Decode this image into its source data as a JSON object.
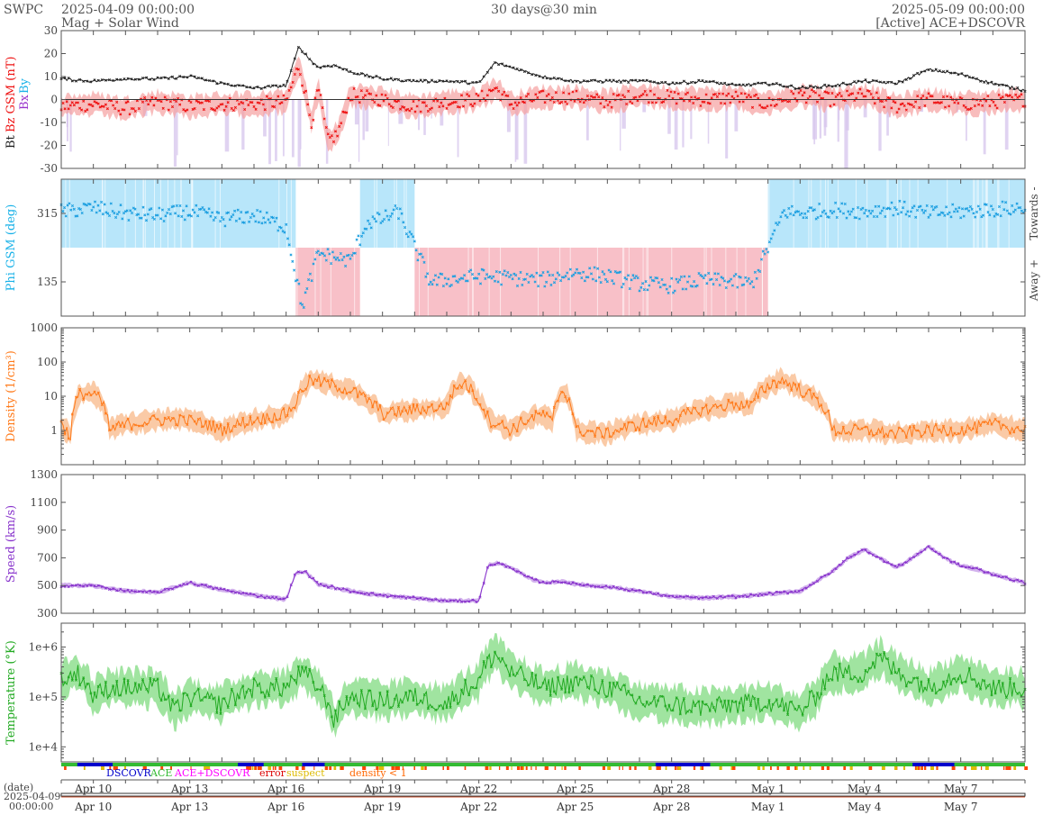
{
  "header": {
    "org": "SWPC",
    "start_time": "2025-04-09 00:00:00",
    "product": "Mag + Solar Wind",
    "resolution": "30 days@30 min",
    "end_time": "2025-05-09 00:00:00",
    "source": "[Active] ACE+DSCOVR"
  },
  "date_axis": {
    "label": "(date)",
    "start_date": "2025-04-09",
    "start_clock": "00:00:00",
    "ticks": [
      "Apr 10",
      "Apr 13",
      "Apr 16",
      "Apr 19",
      "Apr 22",
      "Apr 25",
      "Apr 28",
      "May 1",
      "May 4",
      "May 7"
    ]
  },
  "legend": {
    "items": [
      {
        "label": "DSCOVR",
        "color": "#0000cc"
      },
      {
        "label": "ACE",
        "color": "#33bb33"
      },
      {
        "label": "ACE+DSCOVR",
        "color": "#ff00ff"
      },
      {
        "label": "error",
        "color": "#dd0000"
      },
      {
        "label": "suspect",
        "color": "#ddbb00"
      },
      {
        "label": "density < 1",
        "color": "#ff6600"
      }
    ]
  },
  "colors": {
    "bt": "#222222",
    "bz": "#ee1111",
    "bz_fill": "#f5a0a0",
    "bx": "#9933cc",
    "by": "#1ab2e8",
    "phi_towards": "#b8e6fa",
    "phi_away": "#f8c0c8",
    "phi_points": "#1a9ee0",
    "density": "#ff7a1a",
    "density_fill": "#f8b888",
    "speed": "#8833cc",
    "speed_fill": "#c8a0e8",
    "temperature": "#22aa22",
    "temperature_fill": "#88dd88",
    "axis": "#555555"
  },
  "chart_data": [
    {
      "panel": "magnetic-field",
      "type": "line",
      "ylabel_parts": [
        "Bt",
        "Bz GSM (nT)",
        "Bx",
        "By"
      ],
      "ylim": [
        -30,
        30
      ],
      "yticks": [
        -30,
        -20,
        -10,
        0,
        10,
        20,
        30
      ],
      "x_unit": "days since 2025-04-09 00:00",
      "series": [
        {
          "name": "Bt",
          "x": [
            0,
            1,
            2,
            3,
            4,
            5,
            6,
            7,
            7.4,
            7.7,
            8,
            8.5,
            9,
            10,
            11,
            12,
            13,
            13.5,
            14,
            15,
            16,
            17,
            18,
            19,
            20,
            21,
            22,
            23,
            24,
            25,
            26,
            27,
            28,
            29,
            30
          ],
          "values": [
            9,
            8,
            9,
            9,
            10,
            7,
            5,
            6,
            23,
            18,
            14,
            15,
            12,
            9,
            8,
            8,
            7,
            16,
            14,
            10,
            8,
            8,
            8,
            7,
            8,
            6,
            7,
            5,
            6,
            8,
            7,
            13,
            11,
            7,
            4
          ]
        },
        {
          "name": "Bz GSM",
          "x": [
            0,
            1,
            2,
            3,
            4,
            5,
            6,
            7,
            7.4,
            7.8,
            8,
            8.3,
            8.6,
            9,
            10,
            11,
            12,
            13,
            13.5,
            14,
            15,
            16,
            17,
            18,
            19,
            20,
            21,
            22,
            23,
            24,
            25,
            26,
            27,
            28,
            29,
            30
          ],
          "values": [
            -3,
            -2,
            -4,
            -1,
            -3,
            -2,
            -2,
            -1,
            15,
            -10,
            5,
            -18,
            -15,
            2,
            0,
            -3,
            -1,
            0,
            5,
            -2,
            1,
            1,
            -1,
            2,
            1,
            0,
            1,
            -2,
            2,
            0,
            2,
            -3,
            0,
            -2,
            -1,
            0
          ]
        }
      ]
    },
    {
      "panel": "phi-angle",
      "type": "scatter",
      "ylabel": "Phi GSM (deg)",
      "yticks": [
        135,
        315
      ],
      "ylim": [
        45,
        405
      ],
      "right_labels": [
        "Towards -",
        "Away +"
      ],
      "x_unit": "days since 2025-04-09 00:00",
      "sectors": [
        {
          "sector": "towards",
          "x_start": 0,
          "x_end": 7.3
        },
        {
          "sector": "away",
          "x_start": 7.3,
          "x_end": 9.3
        },
        {
          "sector": "towards",
          "x_start": 9.3,
          "x_end": 11.0
        },
        {
          "sector": "away",
          "x_start": 11.0,
          "x_end": 22.0
        },
        {
          "sector": "towards",
          "x_start": 22.0,
          "x_end": 30.0
        }
      ],
      "series": [
        {
          "name": "Phi",
          "x": [
            0,
            1,
            2,
            3,
            4,
            5,
            6,
            7,
            7.5,
            8,
            8.5,
            9,
            9.5,
            10,
            10.5,
            11.5,
            12,
            13,
            14,
            15,
            16,
            17,
            18,
            19,
            20,
            21,
            21.5,
            22.5,
            23,
            24,
            25,
            26,
            27,
            28,
            29,
            30
          ],
          "values": [
            320,
            330,
            315,
            310,
            320,
            300,
            310,
            280,
            70,
            210,
            200,
            190,
            290,
            300,
            320,
            135,
            140,
            150,
            145,
            140,
            160,
            150,
            130,
            125,
            140,
            135,
            130,
            320,
            315,
            325,
            320,
            330,
            315,
            320,
            325,
            330
          ]
        }
      ]
    },
    {
      "panel": "density",
      "type": "line",
      "ylabel": "Density (1/cm³)",
      "yscale": "log",
      "ylim": [
        0.1,
        1000
      ],
      "yticks": [
        1,
        10,
        100,
        1000
      ],
      "x_unit": "days since 2025-04-09 00:00",
      "series": [
        {
          "name": "Density",
          "x": [
            0,
            0.3,
            0.6,
            1,
            1.5,
            2,
            3,
            4,
            5,
            6,
            7,
            7.3,
            7.8,
            8.5,
            9,
            9.5,
            10,
            11,
            12,
            12.5,
            13,
            13.3,
            14,
            15,
            15.3,
            15.6,
            16,
            17,
            18,
            19,
            20,
            21,
            21.5,
            22,
            22.4,
            23,
            24,
            25,
            26,
            27,
            28,
            29,
            30
          ],
          "values": [
            1.5,
            0.6,
            12,
            12,
            1,
            1.5,
            2,
            2,
            1,
            2,
            3,
            6,
            30,
            20,
            15,
            8,
            3,
            4,
            5,
            25,
            7,
            2,
            1,
            3,
            1.5,
            15,
            1,
            0.8,
            1.5,
            2,
            4,
            6,
            5,
            20,
            30,
            15,
            1,
            1,
            0.8,
            1,
            1,
            1.5,
            1
          ]
        }
      ]
    },
    {
      "panel": "speed",
      "type": "line",
      "ylabel": "Speed (km/s)",
      "ylim": [
        300,
        1300
      ],
      "yticks": [
        300,
        500,
        700,
        900,
        1100,
        1300
      ],
      "x_unit": "days since 2025-04-09 00:00",
      "series": [
        {
          "name": "Speed",
          "x": [
            0,
            1,
            1.5,
            2,
            3,
            4,
            5,
            6,
            7,
            7.3,
            7.6,
            8,
            9,
            10,
            11,
            12,
            13,
            13.3,
            13.6,
            14,
            14.5,
            15,
            15.5,
            16,
            17,
            18,
            19,
            20,
            21,
            22,
            23,
            24,
            24.5,
            25,
            26,
            26.5,
            27,
            27.5,
            28,
            28.5,
            29,
            30
          ],
          "values": [
            500,
            500,
            480,
            460,
            450,
            520,
            470,
            430,
            400,
            590,
            600,
            510,
            460,
            430,
            410,
            390,
            390,
            650,
            660,
            630,
            560,
            520,
            530,
            510,
            490,
            460,
            420,
            410,
            420,
            440,
            460,
            600,
            700,
            760,
            630,
            700,
            780,
            700,
            640,
            620,
            580,
            520
          ]
        }
      ]
    },
    {
      "panel": "temperature",
      "type": "line",
      "ylabel": "Temperature (°K)",
      "yscale": "log",
      "ylim": [
        5000,
        3000000
      ],
      "yticks": [
        10000,
        100000,
        1000000
      ],
      "ytick_labels": [
        "1e+4",
        "1e+5",
        "1e+6"
      ],
      "x_unit": "days since 2025-04-09 00:00",
      "series": [
        {
          "name": "Temperature",
          "x": [
            0,
            0.5,
            1,
            1.5,
            2,
            3,
            3.5,
            4,
            5,
            6,
            7,
            7.5,
            8,
            8.5,
            9,
            10,
            11,
            12,
            13,
            13.5,
            14,
            15,
            16,
            17,
            18,
            19,
            20,
            21,
            22,
            23,
            23.5,
            24,
            25,
            25.5,
            26,
            27,
            28,
            29,
            30
          ],
          "values": [
            200000,
            300000,
            100000,
            150000,
            150000,
            150000,
            50000,
            100000,
            70000,
            150000,
            150000,
            300000,
            150000,
            30000,
            100000,
            80000,
            100000,
            70000,
            200000,
            700000,
            300000,
            150000,
            200000,
            150000,
            80000,
            70000,
            60000,
            70000,
            80000,
            50000,
            100000,
            300000,
            300000,
            600000,
            300000,
            150000,
            300000,
            150000,
            150000
          ]
        }
      ]
    }
  ]
}
